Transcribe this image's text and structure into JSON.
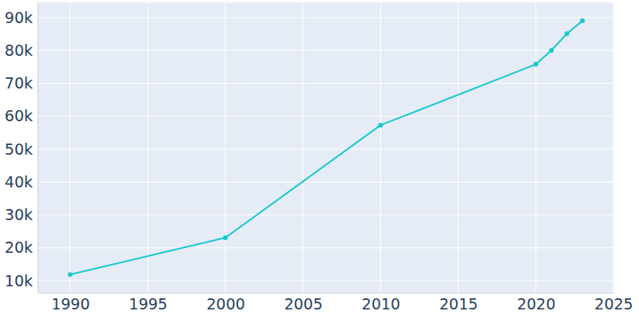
{
  "chart_data": {
    "type": "line",
    "x": [
      1990,
      2000,
      2010,
      2020,
      2021,
      2022,
      2023
    ],
    "values": [
      11900,
      23100,
      57300,
      75800,
      80000,
      85100,
      89000
    ],
    "color": "#17c9cf",
    "marker": "circle",
    "xlim": [
      1987.9,
      2025
    ],
    "xticks": [
      1990,
      1995,
      2000,
      2005,
      2010,
      2015,
      2020,
      2025
    ],
    "ylim": [
      6400,
      94600
    ],
    "yticks": [
      {
        "value": 10000,
        "label": "10k"
      },
      {
        "value": 20000,
        "label": "20k"
      },
      {
        "value": 30000,
        "label": "30k"
      },
      {
        "value": 40000,
        "label": "40k"
      },
      {
        "value": 50000,
        "label": "50k"
      },
      {
        "value": 60000,
        "label": "60k"
      },
      {
        "value": 70000,
        "label": "70k"
      },
      {
        "value": 80000,
        "label": "80k"
      },
      {
        "value": 90000,
        "label": "90k"
      }
    ],
    "grid": true
  }
}
